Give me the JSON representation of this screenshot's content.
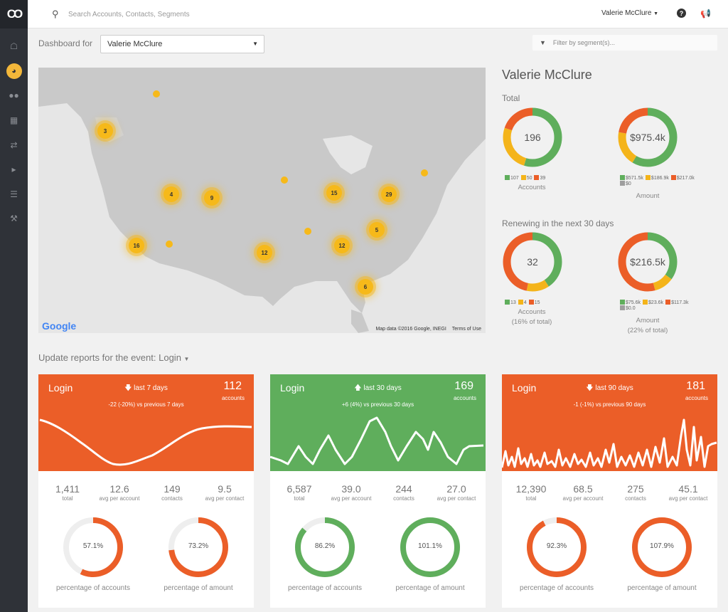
{
  "app": {
    "logo_text": "CO"
  },
  "sidebar": {
    "items": [
      {
        "icon": "home-icon"
      },
      {
        "icon": "dashboard-icon"
      },
      {
        "icon": "users-icon"
      },
      {
        "icon": "building-icon"
      },
      {
        "icon": "shuffle-icon"
      },
      {
        "icon": "megaphone-icon"
      },
      {
        "icon": "list-icon"
      },
      {
        "icon": "wrench-icon"
      }
    ]
  },
  "topbar": {
    "search_placeholder": "Search Accounts, Contacts, Segments",
    "user_name": "Valerie McClure"
  },
  "filters": {
    "dashboard_label": "Dashboard for",
    "selected_user": "Valerie McClure",
    "segment_placeholder": "Filter by segment(s)..."
  },
  "map": {
    "attribution": "Map data ©2016 Google, INEGI",
    "terms": "Terms of Use",
    "google_logo": "Google",
    "clusters": [
      {
        "label": "3"
      },
      {
        "label": "4"
      },
      {
        "label": "9"
      },
      {
        "label": "15"
      },
      {
        "label": "29"
      },
      {
        "label": "16"
      },
      {
        "label": "12"
      },
      {
        "label": "12"
      },
      {
        "label": "5"
      },
      {
        "label": "6"
      }
    ]
  },
  "stats": {
    "name": "Valerie McClure",
    "total_title": "Total",
    "renew_title": "Renewing in the next 30 days",
    "colors": {
      "green": "#5fae5c",
      "yellow": "#f4b41a",
      "orange": "#eb5e28",
      "gray": "#9e9e9e"
    },
    "total_accounts": {
      "center": "196",
      "legend": [
        "107",
        "50",
        "39"
      ],
      "caption": "Accounts"
    },
    "total_amount": {
      "center": "$975.4k",
      "legend": [
        "$571.5k",
        "$186.9k",
        "$217.0k",
        "$0"
      ],
      "caption": "Amount"
    },
    "renew_accounts": {
      "center": "32",
      "legend": [
        "13",
        "4",
        "15"
      ],
      "caption": "Accounts",
      "subcaption": "(16% of total)"
    },
    "renew_amount": {
      "center": "$216.5k",
      "legend": [
        "$75.6k",
        "$23.6k",
        "$117.3k",
        "$0.0"
      ],
      "caption": "Amount",
      "subcaption": "(22% of total)"
    }
  },
  "event": {
    "prefix": "Update reports for the event:",
    "name": "Login"
  },
  "cards": [
    {
      "title": "Login",
      "period": "last 7 days",
      "direction": "down",
      "comparison": "-22 (-20%) vs previous 7 days",
      "count": "112",
      "count_label": "accounts",
      "color": "#eb5e28",
      "metrics": [
        {
          "value": "1,411",
          "label": "total"
        },
        {
          "value": "12.6",
          "label": "avg per account"
        },
        {
          "value": "149",
          "label": "contacts"
        },
        {
          "value": "9.5",
          "label": "avg per contact"
        }
      ],
      "gauges": [
        {
          "value": "57.1%",
          "percent": 57.1,
          "label": "percentage of accounts"
        },
        {
          "value": "73.2%",
          "percent": 73.2,
          "label": "percentage of amount"
        }
      ]
    },
    {
      "title": "Login",
      "period": "last 30 days",
      "direction": "up",
      "comparison": "+6 (4%) vs previous 30 days",
      "count": "169",
      "count_label": "accounts",
      "color": "#5fae5c",
      "metrics": [
        {
          "value": "6,587",
          "label": "total"
        },
        {
          "value": "39.0",
          "label": "avg per account"
        },
        {
          "value": "244",
          "label": "contacts"
        },
        {
          "value": "27.0",
          "label": "avg per contact"
        }
      ],
      "gauges": [
        {
          "value": "86.2%",
          "percent": 86.2,
          "label": "percentage of accounts"
        },
        {
          "value": "101.1%",
          "percent": 101.1,
          "label": "percentage of amount"
        }
      ]
    },
    {
      "title": "Login",
      "period": "last 90 days",
      "direction": "down",
      "comparison": "-1 (-1%) vs previous 90 days",
      "count": "181",
      "count_label": "accounts",
      "color": "#eb5e28",
      "metrics": [
        {
          "value": "12,390",
          "label": "total"
        },
        {
          "value": "68.5",
          "label": "avg per account"
        },
        {
          "value": "275",
          "label": "contacts"
        },
        {
          "value": "45.1",
          "label": "avg per contact"
        }
      ],
      "gauges": [
        {
          "value": "92.3%",
          "percent": 92.3,
          "label": "percentage of accounts"
        },
        {
          "value": "107.9%",
          "percent": 107.9,
          "label": "percentage of amount"
        }
      ]
    }
  ]
}
